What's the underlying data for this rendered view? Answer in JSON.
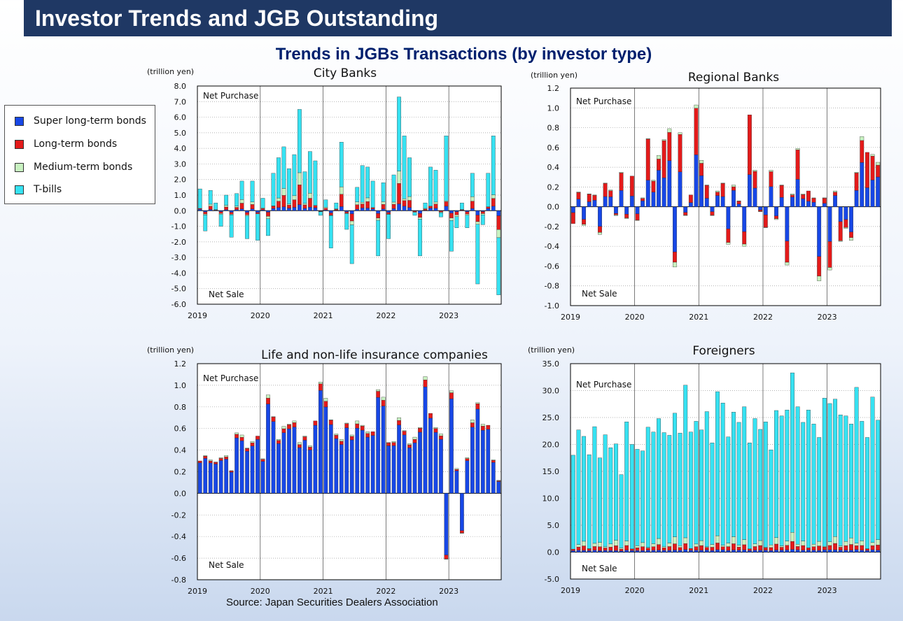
{
  "header": {
    "title": "Investor Trends and JGB Outstanding",
    "subtitle": "Trends in JGBs Transactions (by investor type)",
    "source": "Source: Japan Securities Dealers Association"
  },
  "legend": {
    "items": [
      {
        "label": "Super long-term bonds",
        "color": "#1747e6"
      },
      {
        "label": "Long-term bonds",
        "color": "#e41a1a"
      },
      {
        "label": "Medium-term bonds",
        "color": "#c8f2c0"
      },
      {
        "label": "T-bills",
        "color": "#36e2f2"
      }
    ]
  },
  "chart_data": [
    {
      "type": "bar",
      "stacked": true,
      "title": "City Banks",
      "unit_label": "(trillion yen)",
      "net_purchase_label": "Net Purchase",
      "net_sale_label": "Net Sale",
      "ylim": [
        -6.0,
        8.0
      ],
      "yticks": [
        "8.0",
        "7.0",
        "6.0",
        "5.0",
        "4.0",
        "3.0",
        "2.0",
        "1.0",
        "0.0",
        "-1.0",
        "-2.0",
        "-3.0",
        "-4.0",
        "-5.0",
        "-6.0"
      ],
      "xticks": [
        "2019",
        "2020",
        "2021",
        "2022",
        "2023"
      ],
      "n_months": 58,
      "series_order": [
        "Super long-term bonds",
        "Long-term bonds",
        "Medium-term bonds",
        "T-bills"
      ],
      "totals": [
        1.4,
        -1.3,
        1.3,
        0.5,
        -1.0,
        1.0,
        -1.7,
        1.1,
        1.9,
        -1.8,
        1.9,
        -1.9,
        0.8,
        -1.6,
        2.4,
        3.4,
        4.1,
        2.7,
        3.6,
        6.5,
        2.5,
        3.8,
        3.2,
        -0.3,
        0.7,
        -2.4,
        0.5,
        4.4,
        -1.2,
        -3.4,
        1.5,
        2.9,
        2.8,
        1.9,
        -2.9,
        1.8,
        -1.8,
        2.3,
        7.3,
        4.8,
        3.4,
        -0.3,
        -2.9,
        0.5,
        2.8,
        2.6,
        -0.4,
        4.8,
        -2.6,
        -1.1,
        0.5,
        -1.1,
        2.4,
        -4.7,
        -0.9,
        2.4,
        4.8,
        -5.4
      ],
      "grid": true,
      "legend_position": "left"
    },
    {
      "type": "bar",
      "stacked": true,
      "title": "Regional Banks",
      "unit_label": "(trillion yen)",
      "net_purchase_label": "Net Purchase",
      "net_sale_label": "Net Sale",
      "ylim": [
        -1.0,
        1.2
      ],
      "yticks": [
        "1.2",
        "1.0",
        "0.8",
        "0.6",
        "0.4",
        "0.2",
        "0.0",
        "-0.2",
        "-0.4",
        "-0.6",
        "-0.8",
        "-1.0"
      ],
      "xticks": [
        "2019",
        "2020",
        "2021",
        "2022",
        "2023"
      ],
      "n_months": 58,
      "totals": [
        -0.17,
        0.15,
        -0.19,
        0.13,
        0.12,
        -0.28,
        0.24,
        0.17,
        -0.09,
        0.35,
        -0.12,
        0.31,
        -0.14,
        0.09,
        0.69,
        0.27,
        0.52,
        0.68,
        0.79,
        -0.61,
        0.75,
        -0.09,
        0.12,
        1.03,
        0.47,
        0.22,
        -0.09,
        0.16,
        0.24,
        -0.38,
        0.22,
        0.06,
        -0.4,
        0.93,
        0.37,
        -0.05,
        -0.21,
        0.37,
        -0.13,
        0.22,
        -0.59,
        0.13,
        0.59,
        0.13,
        0.16,
        0.09,
        -0.75,
        0.09,
        -0.64,
        0.16,
        -0.35,
        -0.22,
        -0.34,
        0.35,
        0.71,
        0.55,
        0.53,
        0.45
      ],
      "grid": true
    },
    {
      "type": "bar",
      "stacked": true,
      "title": "Life and non-life insurance companies",
      "unit_label": "(trillion yen)",
      "net_purchase_label": "Net Purchase",
      "net_sale_label": "Net Sale",
      "ylim": [
        -0.8,
        1.2
      ],
      "yticks": [
        "1.2",
        "1.0",
        "0.8",
        "0.6",
        "0.4",
        "0.2",
        "0.0",
        "-0.2",
        "-0.4",
        "-0.6",
        "-0.8"
      ],
      "xticks": [
        "2019",
        "2020",
        "2021",
        "2022",
        "2023"
      ],
      "n_months": 58,
      "totals": [
        0.3,
        0.35,
        0.31,
        0.29,
        0.33,
        0.35,
        0.21,
        0.56,
        0.54,
        0.42,
        0.48,
        0.53,
        0.32,
        0.91,
        0.71,
        0.5,
        0.62,
        0.64,
        0.67,
        0.47,
        0.53,
        0.44,
        0.67,
        1.03,
        0.88,
        0.68,
        0.55,
        0.5,
        0.65,
        0.54,
        0.67,
        0.63,
        0.57,
        0.57,
        0.96,
        0.89,
        0.47,
        0.48,
        0.7,
        0.58,
        0.46,
        0.52,
        0.61,
        1.08,
        0.74,
        0.61,
        0.55,
        -0.61,
        0.95,
        0.23,
        -0.37,
        0.33,
        0.68,
        0.84,
        0.64,
        0.63,
        0.31,
        0.12
      ],
      "grid": true
    },
    {
      "type": "bar",
      "stacked": true,
      "title": "Foreigners",
      "unit_label": "(trillion yen)",
      "net_purchase_label": "Net Purchase",
      "net_sale_label": "Net Sale",
      "ylim": [
        -5.0,
        35.0
      ],
      "yticks": [
        "35.0",
        "30.0",
        "25.0",
        "20.0",
        "15.0",
        "10.0",
        "5.0",
        "0.0",
        "-5.0"
      ],
      "xticks": [
        "2019",
        "2020",
        "2021",
        "2022",
        "2023"
      ],
      "n_months": 58,
      "totals": [
        18.0,
        22.7,
        21.5,
        18.1,
        23.3,
        17.5,
        21.8,
        19.4,
        20.1,
        14.4,
        24.2,
        20.0,
        19.1,
        18.8,
        23.2,
        22.3,
        24.8,
        22.2,
        21.7,
        25.8,
        22.1,
        31.0,
        22.3,
        24.3,
        22.7,
        26.1,
        20.3,
        29.8,
        27.7,
        21.4,
        26.0,
        24.1,
        27.0,
        20.3,
        24.8,
        22.8,
        24.2,
        19.0,
        26.3,
        25.3,
        26.4,
        33.3,
        27.0,
        24.1,
        26.4,
        23.8,
        21.3,
        28.6,
        27.6,
        28.4,
        25.5,
        25.3,
        23.8,
        30.6,
        24.3,
        21.3,
        28.8,
        24.5
      ],
      "grid": true
    }
  ]
}
